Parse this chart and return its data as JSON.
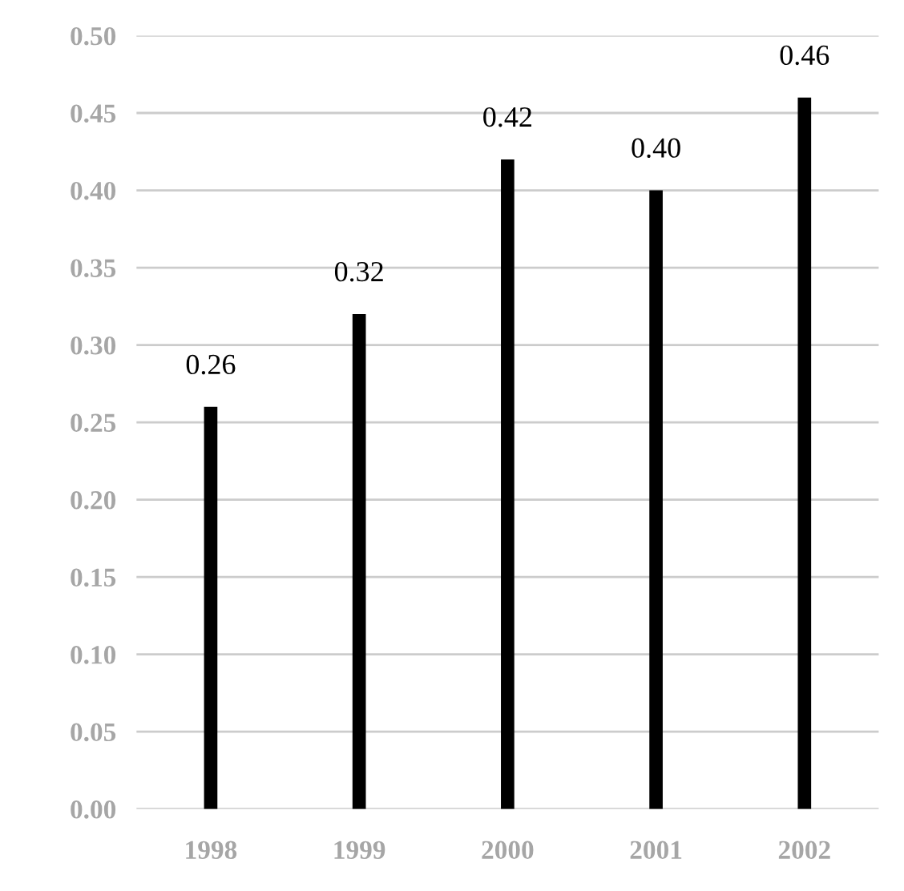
{
  "chart_data": {
    "type": "bar",
    "categories": [
      "1998",
      "1999",
      "2000",
      "2001",
      "2002"
    ],
    "values": [
      0.26,
      0.32,
      0.42,
      0.4,
      0.46
    ],
    "value_labels": [
      "0.26",
      "0.32",
      "0.42",
      "0.40",
      "0.46"
    ],
    "color": "#000000",
    "ylim": [
      0,
      0.5
    ],
    "yticks": [
      {
        "value": 0,
        "label": "0.00"
      },
      {
        "value": 0.05,
        "label": "0.05"
      },
      {
        "value": 0.1,
        "label": "0.10"
      },
      {
        "value": 0.15,
        "label": "0.15"
      },
      {
        "value": 0.2,
        "label": "0.20"
      },
      {
        "value": 0.25,
        "label": "0.25"
      },
      {
        "value": 0.3,
        "label": "0.30"
      },
      {
        "value": 0.35,
        "label": "0.35"
      },
      {
        "value": 0.4,
        "label": "0.40"
      },
      {
        "value": 0.45,
        "label": "0.45"
      },
      {
        "value": 0.5,
        "label": "0.50"
      }
    ],
    "grid": "y"
  }
}
